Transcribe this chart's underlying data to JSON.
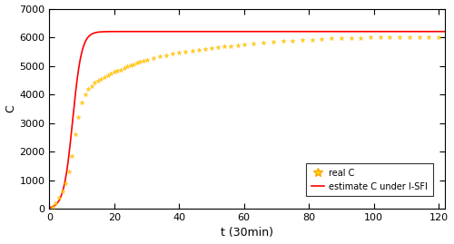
{
  "title": "",
  "xlabel": "t (30min)",
  "ylabel": "C",
  "xlim": [
    0,
    122
  ],
  "ylim": [
    0,
    7000
  ],
  "xticks": [
    0,
    20,
    40,
    60,
    80,
    100,
    120
  ],
  "yticks": [
    0,
    1000,
    2000,
    3000,
    4000,
    5000,
    6000,
    7000
  ],
  "model_N": 6200,
  "model_k": 0.72,
  "model_t0": 7.2,
  "real_t": [
    1,
    2,
    3,
    4,
    5,
    6,
    7,
    8,
    9,
    10,
    11,
    12,
    13,
    14,
    15,
    16,
    17,
    18,
    19,
    20,
    21,
    22,
    23,
    24,
    25,
    26,
    27,
    28,
    29,
    30,
    32,
    34,
    36,
    38,
    40,
    42,
    44,
    46,
    48,
    50,
    52,
    54,
    56,
    58,
    60,
    63,
    66,
    69,
    72,
    75,
    78,
    81,
    84,
    87,
    90,
    93,
    96,
    99,
    102,
    105,
    108,
    111,
    114,
    117,
    120
  ],
  "real_C": [
    80,
    200,
    370,
    600,
    900,
    1300,
    1850,
    2600,
    3200,
    3700,
    4000,
    4200,
    4300,
    4400,
    4480,
    4550,
    4620,
    4680,
    4730,
    4780,
    4820,
    4870,
    4920,
    4970,
    5010,
    5060,
    5100,
    5140,
    5180,
    5220,
    5280,
    5330,
    5380,
    5420,
    5460,
    5500,
    5530,
    5560,
    5590,
    5620,
    5650,
    5670,
    5700,
    5720,
    5750,
    5780,
    5810,
    5840,
    5860,
    5880,
    5900,
    5920,
    5940,
    5955,
    5965,
    5975,
    5985,
    5990,
    5995,
    5998,
    6000,
    6002,
    6005,
    6008,
    6010
  ],
  "line_color": "#ff0000",
  "scatter_color": "#FFD700",
  "scatter_edge_color": "#FFA500",
  "legend_labels": [
    "real C",
    "estimate C under I-SFI"
  ],
  "background_color": "#ffffff"
}
